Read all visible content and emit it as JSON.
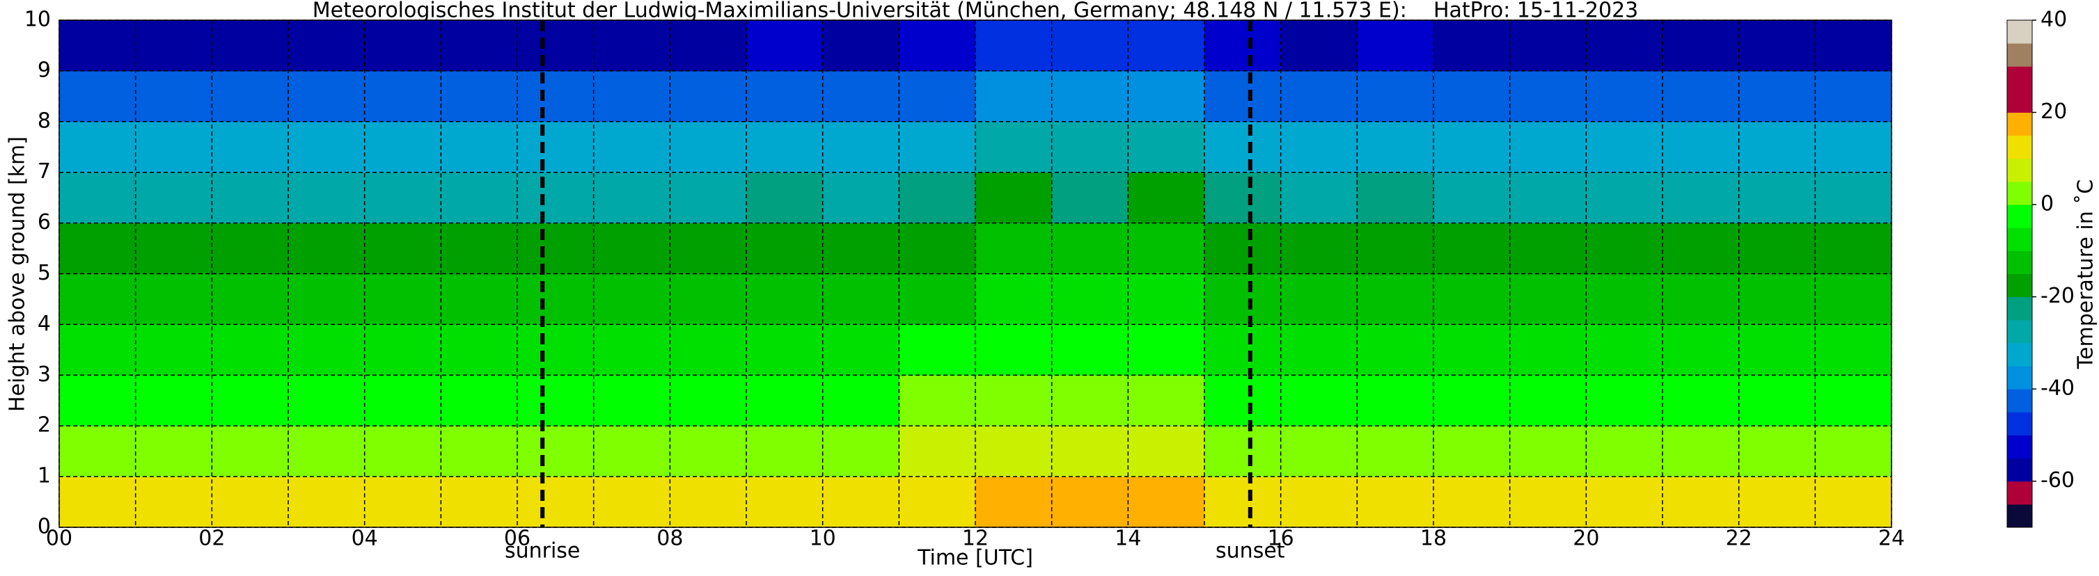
{
  "chart_data": {
    "type": "heatmap",
    "title": "Meteorologisches Institut der Ludwig-Maximilians-Universität (München, Germany; 48.148 N / 11.573 E):    HatPro: 15-11-2023",
    "x_label": "Time [UTC]",
    "y_label": "Height above ground [km]",
    "colorbar_label": "Temperature in ˚C",
    "x_bins": [
      0,
      1,
      2,
      3,
      4,
      5,
      6,
      7,
      8,
      9,
      10,
      11,
      12,
      13,
      14,
      15,
      16,
      17,
      18,
      19,
      20,
      21,
      22,
      23,
      24
    ],
    "y_bins": [
      0,
      1,
      2,
      3,
      4,
      5,
      6,
      7,
      8,
      9,
      10
    ],
    "values": [
      [
        11,
        11,
        11,
        11,
        11,
        11,
        11,
        11,
        11,
        12,
        11,
        13,
        17,
        16,
        17,
        12,
        11,
        12,
        11,
        11,
        11,
        11,
        11,
        11
      ],
      [
        3,
        3,
        3,
        3,
        3,
        3,
        3,
        3,
        3,
        4,
        3,
        5,
        9,
        8,
        9,
        4,
        3,
        4,
        3,
        3,
        3,
        3,
        3,
        3
      ],
      [
        -2,
        -2,
        -2,
        -2,
        -2,
        -2,
        -2,
        -2,
        -2,
        -1,
        -2,
        0,
        4,
        3,
        4,
        -1,
        -2,
        -1,
        -2,
        -2,
        -2,
        -2,
        -2,
        -2
      ],
      [
        -7,
        -7,
        -7,
        -7,
        -7,
        -7,
        -7,
        -7,
        -7,
        -6,
        -7,
        -5,
        -2,
        -3,
        -2,
        -6,
        -7,
        -6,
        -7,
        -7,
        -7,
        -7,
        -7,
        -7
      ],
      [
        -14,
        -14,
        -14,
        -14,
        -14,
        -14,
        -14,
        -14,
        -14,
        -13,
        -14,
        -12,
        -9,
        -10,
        -9,
        -13,
        -14,
        -13,
        -14,
        -14,
        -14,
        -14,
        -14,
        -14
      ],
      [
        -18,
        -18,
        -18,
        -18,
        -18,
        -18,
        -18,
        -18,
        -18,
        -17,
        -18,
        -16,
        -13,
        -14,
        -13,
        -17,
        -18,
        -17,
        -18,
        -18,
        -18,
        -18,
        -18,
        -18
      ],
      [
        -26,
        -26,
        -26,
        -26,
        -26,
        -26,
        -26,
        -26,
        -26,
        -25,
        -26,
        -23,
        -19,
        -21,
        -20,
        -24,
        -26,
        -25,
        -26,
        -26,
        -26,
        -26,
        -26,
        -26
      ],
      [
        -34,
        -34,
        -34,
        -34,
        -34,
        -34,
        -34,
        -34,
        -34,
        -33,
        -34,
        -31,
        -27,
        -28,
        -27,
        -32,
        -34,
        -33,
        -34,
        -34,
        -34,
        -34,
        -34,
        -34
      ],
      [
        -44,
        -44,
        -44,
        -44,
        -44,
        -44,
        -44,
        -44,
        -44,
        -42,
        -44,
        -41,
        -36,
        -38,
        -37,
        -42,
        -44,
        -42,
        -44,
        -44,
        -44,
        -44,
        -44,
        -44
      ],
      [
        -56,
        -56,
        -56,
        -56,
        -56,
        -56,
        -56,
        -56,
        -56,
        -54,
        -56,
        -53,
        -48,
        -50,
        -49,
        -55,
        -56,
        -54,
        -56,
        -56,
        -56,
        -56,
        -56,
        -56
      ]
    ],
    "levels": [
      -70,
      -65,
      -60,
      -55,
      -50,
      -45,
      -40,
      -35,
      -30,
      -25,
      -20,
      -15,
      -10,
      -5,
      0,
      5,
      10,
      15,
      20,
      25,
      30,
      35,
      40
    ],
    "colors": [
      "#0a0a3a",
      "#b0003a",
      "#0000a0",
      "#0000cc",
      "#0030e0",
      "#0060e0",
      "#0090e0",
      "#00a8d0",
      "#00a8a8",
      "#00a080",
      "#00a000",
      "#00c000",
      "#00e000",
      "#00ff00",
      "#80ff00",
      "#c8f000",
      "#f0e000",
      "#ffb000",
      "#b0003a",
      "#b0003a",
      "#a08060",
      "#d8d0c0"
    ],
    "clim": [
      -70,
      40
    ],
    "cticks": [
      -60,
      -40,
      -20,
      0,
      20,
      40
    ],
    "xlim": [
      0,
      24
    ],
    "xticks": [
      {
        "value": 0,
        "label": "00"
      },
      {
        "value": 2,
        "label": "02"
      },
      {
        "value": 4,
        "label": "04"
      },
      {
        "value": 6,
        "label": "06"
      },
      {
        "value": 8,
        "label": "08"
      },
      10,
      12,
      14,
      16,
      18,
      20,
      22,
      24
    ],
    "x_minor_ticks": [
      1,
      3,
      5,
      7,
      9,
      11,
      13,
      15,
      17,
      19,
      21,
      23
    ],
    "ylim": [
      0,
      10
    ],
    "yticks": [
      0,
      1,
      2,
      3,
      4,
      5,
      6,
      7,
      8,
      9,
      10
    ],
    "grid": true,
    "markers": [
      {
        "x": 6.33,
        "label": "sunrise"
      },
      {
        "x": 15.6,
        "label": "sunset"
      }
    ]
  }
}
